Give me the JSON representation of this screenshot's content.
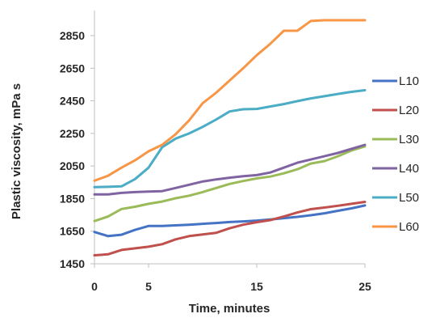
{
  "chart_data": {
    "type": "line",
    "title": "",
    "xlabel": "Time, minutes",
    "ylabel": "Plastic viscosity, mPa s",
    "xlim": [
      0,
      25
    ],
    "ylim": [
      1450,
      2950
    ],
    "x_ticks": [
      0,
      5,
      15,
      25
    ],
    "x_tick_labels": [
      "0",
      "5",
      "15",
      "25"
    ],
    "y_ticks": [
      1450,
      1650,
      1850,
      2050,
      2250,
      2450,
      2650,
      2850
    ],
    "y_tick_labels": [
      "1450",
      "1650",
      "1850",
      "2050",
      "2250",
      "2450",
      "2650",
      "2850"
    ],
    "grid": false,
    "legend_position": "right",
    "x": [
      0,
      1.25,
      2.5,
      3.75,
      5,
      6.25,
      7.5,
      8.75,
      10,
      11.25,
      12.5,
      13.75,
      15,
      16.25,
      17.5,
      18.75,
      20,
      21.25,
      22.5,
      23.75,
      25
    ],
    "series": [
      {
        "name": "L10",
        "color": "#4472C4",
        "values": [
          1645,
          1620,
          1628,
          1658,
          1682,
          1682,
          1686,
          1690,
          1695,
          1700,
          1706,
          1710,
          1715,
          1722,
          1730,
          1738,
          1748,
          1760,
          1775,
          1790,
          1808
        ]
      },
      {
        "name": "L20",
        "color": "#C0504D",
        "values": [
          1502,
          1508,
          1535,
          1545,
          1555,
          1570,
          1600,
          1620,
          1630,
          1640,
          1668,
          1690,
          1705,
          1718,
          1740,
          1765,
          1785,
          1795,
          1806,
          1818,
          1830
        ]
      },
      {
        "name": "L30",
        "color": "#9BBB59",
        "values": [
          1712,
          1740,
          1786,
          1800,
          1818,
          1832,
          1852,
          1868,
          1890,
          1915,
          1940,
          1958,
          1974,
          1985,
          2005,
          2030,
          2065,
          2080,
          2110,
          2145,
          2170
        ]
      },
      {
        "name": "L40",
        "color": "#8064A2",
        "values": [
          1876,
          1876,
          1885,
          1890,
          1893,
          1896,
          1915,
          1935,
          1955,
          1968,
          1978,
          1987,
          1994,
          2010,
          2040,
          2070,
          2090,
          2110,
          2130,
          2155,
          2180
        ]
      },
      {
        "name": "L50",
        "color": "#4BACC6",
        "values": [
          1920,
          1922,
          1925,
          1970,
          2040,
          2165,
          2218,
          2250,
          2290,
          2335,
          2385,
          2398,
          2400,
          2415,
          2430,
          2448,
          2465,
          2478,
          2492,
          2505,
          2515
        ]
      },
      {
        "name": "L60",
        "color": "#F79646",
        "values": [
          1960,
          1990,
          2040,
          2085,
          2140,
          2180,
          2245,
          2330,
          2435,
          2500,
          2575,
          2650,
          2730,
          2800,
          2880,
          2880,
          2940,
          2970,
          3000,
          3030,
          3060
        ]
      }
    ]
  }
}
